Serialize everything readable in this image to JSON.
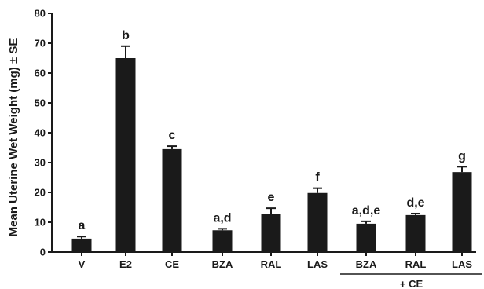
{
  "chart_data": {
    "type": "bar",
    "title": "",
    "ylabel": "Mean Uterine Wet Weight (mg) ± SE",
    "xlabel": "",
    "ylim": [
      0,
      80
    ],
    "yticks": [
      0,
      10,
      20,
      30,
      40,
      50,
      60,
      70,
      80
    ],
    "categories": [
      "V",
      "E2",
      "CE",
      "BZA",
      "RAL",
      "LAS",
      "BZA",
      "RAL",
      "LAS"
    ],
    "values": [
      4.5,
      65,
      34.5,
      7.3,
      12.7,
      19.8,
      9.5,
      12.4,
      26.8
    ],
    "errors": [
      0.7,
      4,
      1,
      0.5,
      2,
      1.6,
      0.8,
      0.5,
      1.8
    ],
    "significance_labels": [
      "a",
      "b",
      "c",
      "a,d",
      "e",
      "f",
      "a,d,e",
      "d,e",
      "g"
    ],
    "group_label": "+ CE",
    "group_categories": [
      6,
      7,
      8
    ],
    "bar_color": "#1a1a1a",
    "grid": false,
    "legend": "none"
  }
}
